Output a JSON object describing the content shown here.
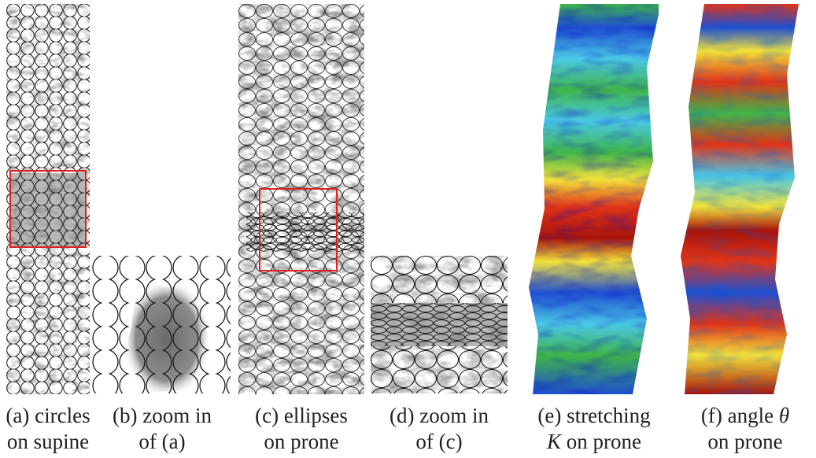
{
  "figure": {
    "panels": [
      {
        "id": "a",
        "caption_line1": "(a) circles",
        "caption_line2": "on supine",
        "pattern": "circles",
        "highlight_box_color": "#e02020"
      },
      {
        "id": "b",
        "caption_line1": "(b) zoom in",
        "caption_line2": "of (a)",
        "pattern": "circles-zoom"
      },
      {
        "id": "c",
        "caption_line1": "(c) ellipses",
        "caption_line2": "on prone",
        "pattern": "ellipses",
        "highlight_box_color": "#e02020"
      },
      {
        "id": "d",
        "caption_line1": "(d) zoom in",
        "caption_line2": "of (c)",
        "pattern": "ellipses-zoom"
      },
      {
        "id": "e",
        "caption_line1": "(e) stretching",
        "caption_line2_symbol": "K",
        "caption_line2_rest": " on prone",
        "pattern": "colormap-jet"
      },
      {
        "id": "f",
        "caption_line1_text": "(f) angle ",
        "caption_line1_symbol": "θ",
        "caption_line2": "on prone",
        "pattern": "colormap-jet"
      }
    ],
    "colors": {
      "outline": "#1a1a1a",
      "jet_blue": "#1f4fd0",
      "jet_cyan": "#4ac8e6",
      "jet_green": "#3fb54a",
      "jet_yellow": "#f2e23a",
      "jet_red": "#e03418",
      "jet_darkred": "#a8140c"
    }
  }
}
